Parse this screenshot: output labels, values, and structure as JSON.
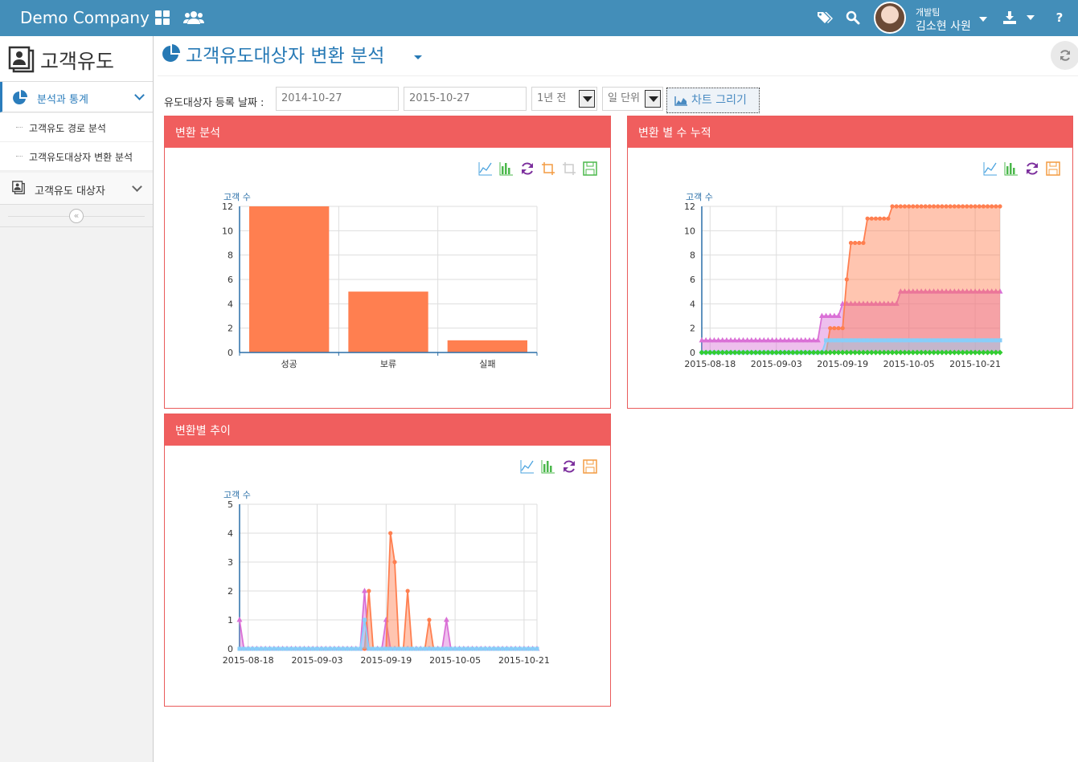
{
  "header": {
    "brand": "Demo Company",
    "user_team": "개발팀",
    "user_name": "김소현 사원"
  },
  "sidebar": {
    "title": "고객유도",
    "menu": [
      {
        "label": "분석과 통계",
        "children": [
          "고객유도 경로 분석",
          "고객유도대상자 변환 분석"
        ]
      },
      {
        "label": "고객유도 대상자"
      }
    ]
  },
  "page": {
    "title": "고객유도대상자 변환 분석",
    "filter_label": "유도대상자 등록 날짜 :",
    "date_from": "2014-10-27",
    "date_to": "2015-10-27",
    "period_select": "1년 전",
    "unit_select": "일 단위",
    "draw_button": "차트 그리기"
  },
  "panels": {
    "p1_title": "변환 분석",
    "p2_title": "변환 별 수 누적",
    "p3_title": "변환별 추이"
  },
  "colors": {
    "topbar": "#438eb9",
    "panel_header": "#f05e5e",
    "orange": "#ff7f50",
    "violet": "#da70d6",
    "skyblue": "#87cefa",
    "green": "#32cd32"
  },
  "chart_data": [
    {
      "type": "bar",
      "ylabel": "고객 수",
      "categories": [
        "성공",
        "보류",
        "실패"
      ],
      "values": [
        12,
        5,
        1
      ],
      "ylim": [
        0,
        12
      ],
      "yticks": [
        0,
        2,
        4,
        6,
        8,
        10,
        12
      ],
      "grid": true
    },
    {
      "type": "area",
      "ylabel": "고객 수",
      "x_range": [
        "2015-08-16",
        "2015-10-27"
      ],
      "xticks": [
        "2015-08-18",
        "2015-09-03",
        "2015-09-19",
        "2015-10-05",
        "2015-10-21"
      ],
      "ylim": [
        0,
        12
      ],
      "yticks": [
        0,
        2,
        4,
        6,
        8,
        10,
        12
      ],
      "grid": true,
      "series": [
        {
          "color": "#da70d6",
          "marker": "triangle",
          "points": [
            [
              "2015-08-16",
              1
            ],
            [
              "2015-09-13",
              1
            ],
            [
              "2015-09-14",
              3
            ],
            [
              "2015-09-18",
              3
            ],
            [
              "2015-09-19",
              4
            ],
            [
              "2015-10-02",
              4
            ],
            [
              "2015-10-03",
              5
            ],
            [
              "2015-10-27",
              5
            ]
          ]
        },
        {
          "color": "#ff7f50",
          "marker": "circle",
          "points": [
            [
              "2015-08-16",
              0
            ],
            [
              "2015-09-15",
              0
            ],
            [
              "2015-09-16",
              2
            ],
            [
              "2015-09-19",
              2
            ],
            [
              "2015-09-20",
              6
            ],
            [
              "2015-09-21",
              9
            ],
            [
              "2015-09-24",
              9
            ],
            [
              "2015-09-25",
              11
            ],
            [
              "2015-09-30",
              11
            ],
            [
              "2015-10-01",
              12
            ],
            [
              "2015-10-27",
              12
            ]
          ]
        },
        {
          "color": "#87cefa",
          "marker": "square",
          "points": [
            [
              "2015-08-16",
              0
            ],
            [
              "2015-09-14",
              0
            ],
            [
              "2015-09-15",
              1
            ],
            [
              "2015-10-27",
              1
            ]
          ]
        },
        {
          "color": "#32cd32",
          "marker": "diamond",
          "points": [
            [
              "2015-08-16",
              0
            ],
            [
              "2015-10-27",
              0
            ]
          ]
        }
      ]
    },
    {
      "type": "area",
      "ylabel": "고객 수",
      "x_range": [
        "2015-08-16",
        "2015-10-24"
      ],
      "xticks": [
        "2015-08-18",
        "2015-09-03",
        "2015-09-19",
        "2015-10-05",
        "2015-10-21"
      ],
      "ylim": [
        0,
        5
      ],
      "yticks": [
        0,
        1,
        2,
        3,
        4,
        5
      ],
      "grid": true,
      "series": [
        {
          "color": "#da70d6",
          "marker": "triangle",
          "points": [
            [
              "2015-08-16",
              1
            ],
            [
              "2015-08-17",
              0
            ],
            [
              "2015-09-13",
              0
            ],
            [
              "2015-09-14",
              2
            ],
            [
              "2015-09-15",
              0
            ],
            [
              "2015-09-18",
              0
            ],
            [
              "2015-09-19",
              1
            ],
            [
              "2015-09-20",
              0
            ],
            [
              "2015-10-02",
              0
            ],
            [
              "2015-10-03",
              1
            ],
            [
              "2015-10-04",
              0
            ],
            [
              "2015-10-24",
              0
            ]
          ]
        },
        {
          "color": "#ff7f50",
          "marker": "circle",
          "points": [
            [
              "2015-08-16",
              0
            ],
            [
              "2015-09-14",
              0
            ],
            [
              "2015-09-15",
              2
            ],
            [
              "2015-09-16",
              0
            ],
            [
              "2015-09-19",
              0
            ],
            [
              "2015-09-20",
              4
            ],
            [
              "2015-09-21",
              3
            ],
            [
              "2015-09-22",
              0
            ],
            [
              "2015-09-23",
              0
            ],
            [
              "2015-09-24",
              2
            ],
            [
              "2015-09-25",
              0
            ],
            [
              "2015-09-28",
              0
            ],
            [
              "2015-09-29",
              1
            ],
            [
              "2015-09-30",
              0
            ],
            [
              "2015-10-24",
              0
            ]
          ]
        },
        {
          "color": "#87cefa",
          "marker": "square",
          "points": [
            [
              "2015-08-16",
              0
            ],
            [
              "2015-09-13",
              0
            ],
            [
              "2015-09-14",
              1
            ],
            [
              "2015-09-15",
              0
            ],
            [
              "2015-10-24",
              0
            ]
          ]
        }
      ]
    }
  ]
}
